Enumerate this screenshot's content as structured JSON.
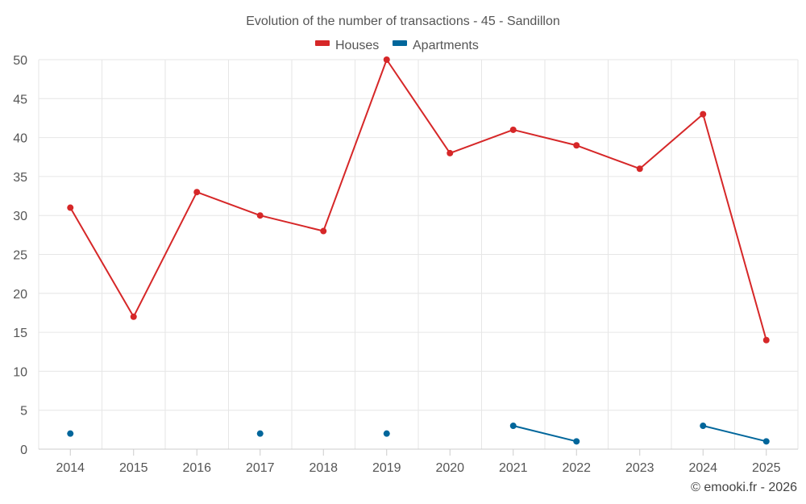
{
  "chart_data": {
    "type": "line",
    "title": "Evolution of the number of transactions - 45 - Sandillon",
    "xlabel": "",
    "ylabel": "",
    "categories": [
      "2014",
      "2015",
      "2016",
      "2017",
      "2018",
      "2019",
      "2020",
      "2021",
      "2022",
      "2023",
      "2024",
      "2025"
    ],
    "ylim": [
      0,
      50
    ],
    "yticks": [
      0,
      5,
      10,
      15,
      20,
      25,
      30,
      35,
      40,
      45,
      50
    ],
    "grid": true,
    "legend_position": "top-center",
    "series": [
      {
        "name": "Houses",
        "color": "#d62728",
        "values": [
          31,
          17,
          33,
          30,
          28,
          50,
          38,
          41,
          39,
          36,
          43,
          14
        ]
      },
      {
        "name": "Apartments",
        "color": "#00669b",
        "values": [
          2,
          null,
          null,
          2,
          null,
          2,
          null,
          3,
          1,
          null,
          3,
          1
        ]
      }
    ]
  },
  "credit": "© emooki.fr - 2026"
}
